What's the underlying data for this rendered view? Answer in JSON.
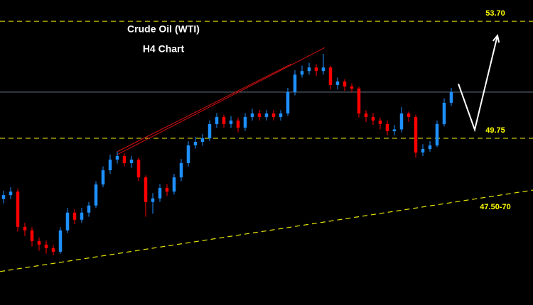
{
  "chart_data": {
    "type": "candlestick",
    "title": "Crude Oil (WTI)",
    "subtitle": "H4 Chart",
    "up_color": "#1e90ff",
    "down_color": "#ff0000",
    "xlim": [
      -0.5,
      74.5
    ],
    "ylim": [
      44.12,
      54.42
    ],
    "open": [
      47.7,
      47.83,
      47.95,
      46.76,
      46.64,
      46.28,
      46.16,
      46.04,
      45.92,
      46.64,
      47.24,
      47.0,
      47.24,
      47.48,
      48.19,
      48.67,
      49.03,
      49.15,
      48.91,
      49.03,
      48.43,
      47.6,
      47.72,
      48.07,
      47.95,
      48.43,
      48.91,
      49.51,
      49.63,
      49.75,
      50.23,
      50.47,
      50.23,
      50.35,
      50.11,
      50.47,
      50.59,
      50.47,
      50.59,
      50.47,
      50.59,
      51.31,
      51.9,
      52.02,
      52.14,
      52.02,
      52.14,
      51.55,
      51.67,
      51.5,
      51.43,
      50.59,
      50.47,
      50.35,
      50.23,
      49.99,
      50.05,
      50.59,
      50.47,
      49.27,
      49.39,
      49.51,
      50.23,
      50.95
    ],
    "high": [
      47.98,
      48.1,
      48.05,
      46.9,
      46.75,
      46.4,
      46.3,
      46.15,
      46.75,
      47.4,
      47.35,
      47.4,
      47.6,
      48.3,
      48.8,
      49.2,
      49.3,
      49.25,
      49.15,
      49.1,
      48.5,
      47.9,
      48.2,
      48.2,
      48.55,
      49.05,
      49.65,
      49.8,
      49.9,
      50.35,
      50.6,
      50.55,
      50.5,
      50.45,
      50.6,
      50.75,
      50.7,
      50.7,
      50.7,
      50.7,
      51.45,
      52.05,
      52.2,
      52.3,
      52.25,
      52.6,
      52.2,
      51.8,
      51.75,
      51.6,
      51.5,
      50.7,
      50.6,
      50.45,
      50.35,
      50.2,
      50.8,
      50.65,
      50.55,
      49.55,
      49.65,
      50.35,
      51.1,
      51.45
    ],
    "low": [
      47.55,
      47.7,
      46.6,
      46.45,
      46.1,
      45.95,
      45.85,
      45.8,
      45.85,
      46.55,
      46.85,
      46.9,
      47.1,
      47.4,
      48.1,
      48.55,
      48.9,
      48.8,
      48.75,
      48.3,
      47.1,
      47.2,
      47.6,
      47.8,
      47.85,
      48.3,
      48.8,
      49.4,
      49.5,
      49.65,
      50.1,
      50.1,
      50.1,
      49.95,
      50.0,
      50.35,
      50.35,
      50.35,
      50.35,
      50.35,
      50.5,
      51.2,
      51.8,
      51.9,
      51.85,
      51.9,
      51.4,
      51.4,
      51.35,
      51.3,
      50.45,
      50.3,
      50.2,
      50.05,
      49.85,
      49.85,
      49.95,
      50.3,
      49.1,
      49.15,
      49.3,
      49.45,
      50.15,
      50.85
    ],
    "close": [
      47.83,
      47.95,
      46.76,
      46.64,
      46.28,
      46.16,
      46.04,
      45.92,
      46.64,
      47.24,
      47.0,
      47.24,
      47.48,
      48.19,
      48.67,
      49.03,
      49.15,
      48.91,
      49.03,
      48.43,
      47.6,
      47.72,
      48.07,
      47.95,
      48.43,
      48.91,
      49.51,
      49.63,
      49.75,
      50.23,
      50.47,
      50.23,
      50.35,
      50.11,
      50.47,
      50.59,
      50.47,
      50.59,
      50.47,
      50.59,
      51.31,
      51.9,
      52.02,
      52.14,
      52.02,
      52.14,
      51.55,
      51.67,
      51.5,
      51.43,
      50.59,
      50.47,
      50.35,
      50.23,
      49.99,
      50.05,
      50.59,
      50.47,
      49.27,
      49.39,
      49.51,
      50.23,
      50.95,
      51.31
    ],
    "levels": [
      {
        "value": 53.7,
        "label": "53.70"
      },
      {
        "value": 49.75,
        "label": "49.75"
      }
    ],
    "current_price": 51.31,
    "trendline": {
      "x": [
        -0.5,
        74.5
      ],
      "y": [
        45.25,
        48.0
      ],
      "label": "47.50-70"
    },
    "annotation_lines": [
      {
        "x": [
          16,
          45.2
        ],
        "y": [
          49.2,
          52.81
        ]
      },
      {
        "x": [
          16,
          40.5
        ],
        "y": [
          49.3,
          52.26
        ]
      }
    ],
    "projection": {
      "x": [
        64,
        66.3,
        69.5
      ],
      "y": [
        51.59,
        50.04,
        53.22
      ]
    }
  }
}
